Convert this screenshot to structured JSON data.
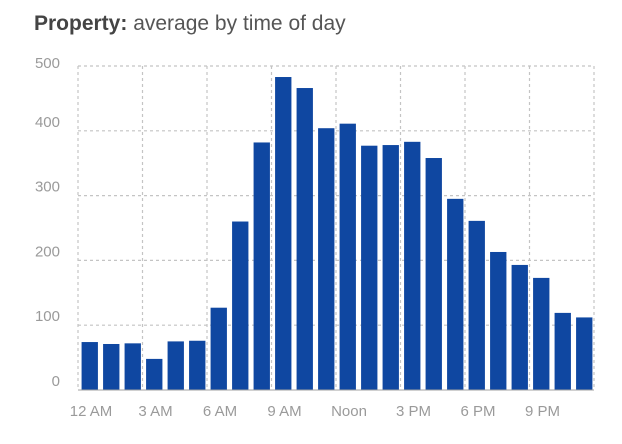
{
  "title": {
    "bold": "Property:",
    "rest": "average by time of day"
  },
  "colors": {
    "bar": "#0f47a1",
    "grid": "#c4c4c4",
    "axis": "#a0a0a0",
    "tick_text": "#9a9a9a"
  },
  "chart_data": {
    "type": "bar",
    "title": "Property: average by time of day",
    "xlabel": "",
    "ylabel": "",
    "ylim": [
      0,
      500
    ],
    "yticks": [
      0,
      100,
      200,
      300,
      400,
      500
    ],
    "grid": true,
    "categories": [
      "12 AM",
      "1 AM",
      "2 AM",
      "3 AM",
      "4 AM",
      "5 AM",
      "6 AM",
      "7 AM",
      "8 AM",
      "9 AM",
      "10 AM",
      "11 AM",
      "Noon",
      "1 PM",
      "2 PM",
      "3 PM",
      "4 PM",
      "5 PM",
      "6 PM",
      "7 PM",
      "8 PM",
      "9 PM",
      "10 PM",
      "11 PM"
    ],
    "x_tick_labels": [
      {
        "index": 0,
        "label": "12 AM"
      },
      {
        "index": 3,
        "label": "3 AM"
      },
      {
        "index": 6,
        "label": "6 AM"
      },
      {
        "index": 9,
        "label": "9 AM"
      },
      {
        "index": 12,
        "label": "Noon"
      },
      {
        "index": 15,
        "label": "3 PM"
      },
      {
        "index": 18,
        "label": "6 PM"
      },
      {
        "index": 21,
        "label": "9 PM"
      }
    ],
    "values": [
      74,
      71,
      72,
      48,
      75,
      76,
      127,
      260,
      382,
      483,
      466,
      404,
      411,
      377,
      378,
      383,
      358,
      295,
      261,
      213,
      193,
      173,
      119,
      112
    ]
  }
}
